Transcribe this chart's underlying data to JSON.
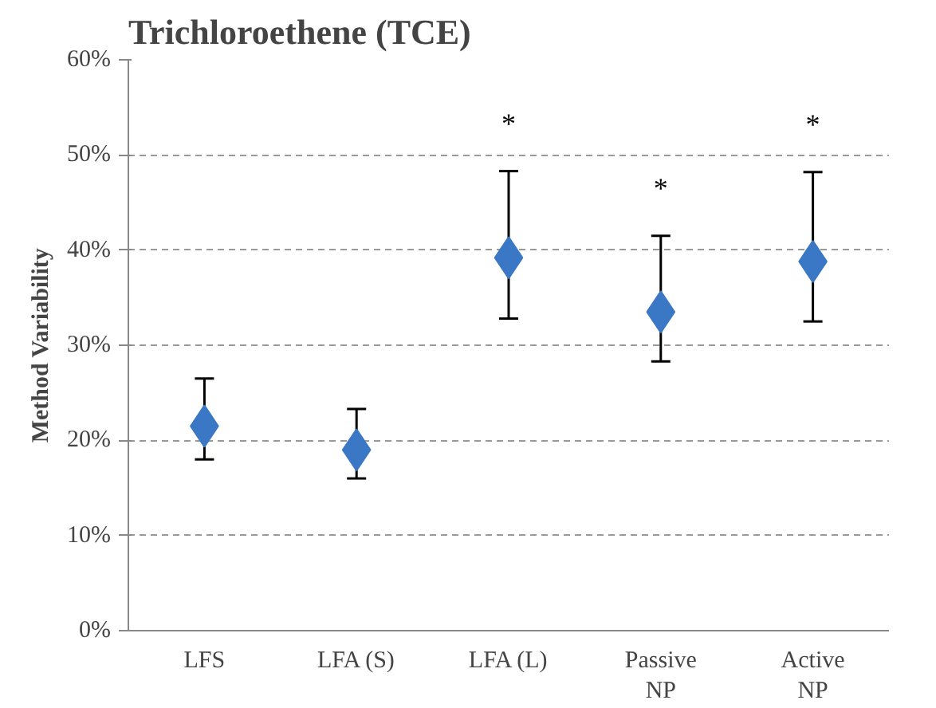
{
  "chart_data": {
    "type": "scatter",
    "title": "Trichloroethene (TCE)",
    "ylabel": "Method Variability",
    "categories": [
      "LFS",
      "LFA (S)",
      "LFA (L)",
      "Passive\nNP",
      "Active\nNP"
    ],
    "series": [
      {
        "color": "#3a78c6",
        "values": [
          21.5,
          19,
          39.2,
          33.5,
          38.8
        ],
        "errors": [
          [
            18,
            26.5
          ],
          [
            16,
            23.3
          ],
          [
            32.8,
            48.3
          ],
          [
            28.3,
            41.5
          ],
          [
            32.5,
            48.2
          ]
        ]
      }
    ],
    "marker": "diamond",
    "grid": "y",
    "ylim": [
      0,
      60
    ],
    "yticks": [
      {
        "value": 0,
        "label": "0%"
      },
      {
        "value": 10,
        "label": "10%"
      },
      {
        "value": 20,
        "label": "20%"
      },
      {
        "value": 30,
        "label": "30%"
      },
      {
        "value": 40,
        "label": "40%"
      },
      {
        "value": 50,
        "label": "50%"
      },
      {
        "value": 60,
        "label": "60%"
      }
    ],
    "annotations": [
      "*",
      "*",
      "*"
    ]
  }
}
